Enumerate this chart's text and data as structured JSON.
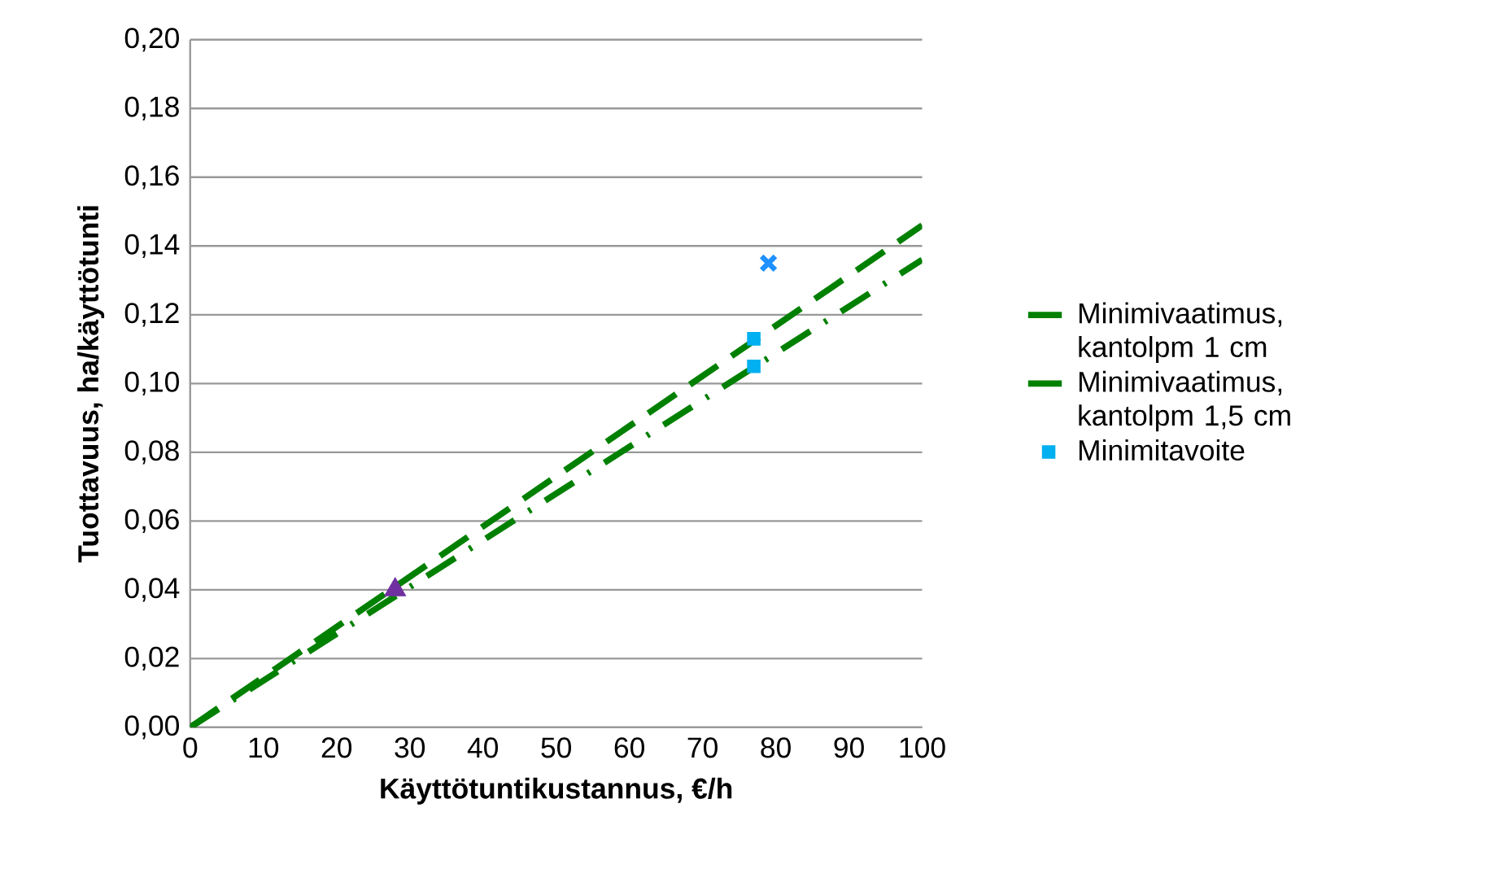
{
  "chart_data": {
    "type": "line",
    "xlabel": "Käyttötuntikustannus, €/h",
    "ylabel": "Tuottavuus, ha/käyttötunti",
    "xlim": [
      0,
      100
    ],
    "xticks": [
      0,
      10,
      20,
      30,
      40,
      50,
      60,
      70,
      80,
      90,
      100
    ],
    "ylim": [
      0,
      0.2
    ],
    "yticks": [
      {
        "value": 0,
        "label": "0,00"
      },
      {
        "value": 0.02,
        "label": "0,02"
      },
      {
        "value": 0.04,
        "label": "0,04"
      },
      {
        "value": 0.06,
        "label": "0,06"
      },
      {
        "value": 0.08,
        "label": "0,08"
      },
      {
        "value": 0.1,
        "label": "0,10"
      },
      {
        "value": 0.12,
        "label": "0,12"
      },
      {
        "value": 0.14,
        "label": "0,14"
      },
      {
        "value": 0.16,
        "label": "0,16"
      },
      {
        "value": 0.18,
        "label": "0,18"
      },
      {
        "value": 0.2,
        "label": "0,20"
      }
    ],
    "grid": "y",
    "legend": "right",
    "series": [
      {
        "name": "Minimivaatimus, kantolpm 1 cm",
        "color": "#008000",
        "line_style": "dashed",
        "marker": "none",
        "x": [
          0,
          100
        ],
        "values": [
          0,
          0.146
        ]
      },
      {
        "name": "Minimivaatimus, kantolpm 1,5 cm",
        "color": "#008000",
        "line_style": "dashdot",
        "marker": "none",
        "x": [
          0,
          100
        ],
        "values": [
          0,
          0.136
        ]
      },
      {
        "type": "scatter",
        "name": "Minimitavoite",
        "color": "#00b0f0",
        "marker": "square",
        "x": [
          77,
          77
        ],
        "values": [
          0.113,
          0.105
        ]
      },
      {
        "type": "scatter",
        "color": "#1e90ff",
        "marker": "cross",
        "x": [
          79
        ],
        "values": [
          0.135
        ]
      },
      {
        "type": "scatter",
        "color": "#7030a0",
        "marker": "triangle",
        "x": [
          28
        ],
        "values": [
          0.04
        ]
      }
    ]
  }
}
